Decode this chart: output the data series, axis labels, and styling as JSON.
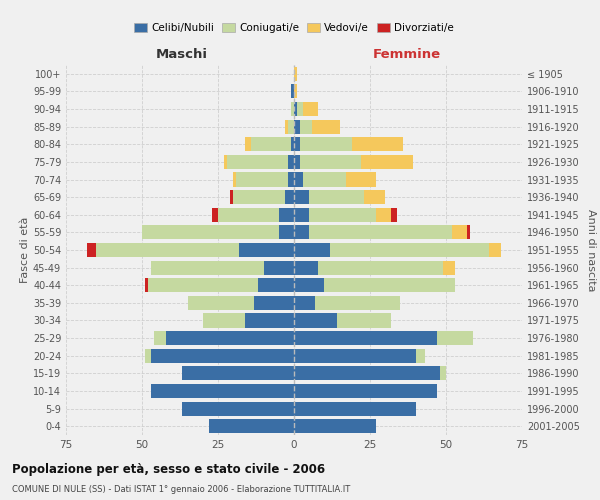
{
  "age_groups": [
    "0-4",
    "5-9",
    "10-14",
    "15-19",
    "20-24",
    "25-29",
    "30-34",
    "35-39",
    "40-44",
    "45-49",
    "50-54",
    "55-59",
    "60-64",
    "65-69",
    "70-74",
    "75-79",
    "80-84",
    "85-89",
    "90-94",
    "95-99",
    "100+"
  ],
  "birth_years": [
    "2001-2005",
    "1996-2000",
    "1991-1995",
    "1986-1990",
    "1981-1985",
    "1976-1980",
    "1971-1975",
    "1966-1970",
    "1961-1965",
    "1956-1960",
    "1951-1955",
    "1946-1950",
    "1941-1945",
    "1936-1940",
    "1931-1935",
    "1926-1930",
    "1921-1925",
    "1916-1920",
    "1911-1915",
    "1906-1910",
    "≤ 1905"
  ],
  "colors": {
    "celibi": "#3a6ea5",
    "coniugati": "#c5d9a0",
    "vedovi": "#f5c85c",
    "divorziati": "#cc2222"
  },
  "maschi": {
    "celibi": [
      28,
      37,
      47,
      37,
      47,
      42,
      16,
      13,
      12,
      10,
      18,
      5,
      5,
      3,
      2,
      2,
      1,
      0,
      0,
      1,
      0
    ],
    "coniugati": [
      0,
      0,
      0,
      0,
      2,
      4,
      14,
      22,
      36,
      37,
      47,
      45,
      20,
      17,
      17,
      20,
      13,
      2,
      1,
      0,
      0
    ],
    "vedovi": [
      0,
      0,
      0,
      0,
      0,
      0,
      0,
      0,
      0,
      0,
      0,
      0,
      0,
      0,
      1,
      1,
      2,
      1,
      0,
      0,
      0
    ],
    "divorziati": [
      0,
      0,
      0,
      0,
      0,
      0,
      0,
      0,
      1,
      0,
      3,
      0,
      2,
      1,
      0,
      0,
      0,
      0,
      0,
      0,
      0
    ]
  },
  "femmine": {
    "celibi": [
      27,
      40,
      47,
      48,
      40,
      47,
      14,
      7,
      10,
      8,
      12,
      5,
      5,
      5,
      3,
      2,
      2,
      2,
      1,
      0,
      0
    ],
    "coniugati": [
      0,
      0,
      0,
      2,
      3,
      12,
      18,
      28,
      43,
      41,
      52,
      47,
      22,
      18,
      14,
      20,
      17,
      4,
      2,
      0,
      0
    ],
    "vedovi": [
      0,
      0,
      0,
      0,
      0,
      0,
      0,
      0,
      0,
      4,
      4,
      5,
      5,
      7,
      10,
      17,
      17,
      9,
      5,
      1,
      1
    ],
    "divorziati": [
      0,
      0,
      0,
      0,
      0,
      0,
      0,
      0,
      0,
      0,
      0,
      1,
      2,
      0,
      0,
      0,
      0,
      0,
      0,
      0,
      0
    ]
  },
  "xlim": 75,
  "title": "Popolazione per età, sesso e stato civile - 2006",
  "subtitle": "COMUNE DI NULE (SS) - Dati ISTAT 1° gennaio 2006 - Elaborazione TUTTITALIA.IT",
  "xlabel_left": "Maschi",
  "xlabel_right": "Femmine",
  "ylabel_left": "Fasce di età",
  "ylabel_right": "Anni di nascita",
  "legend_labels": [
    "Celibi/Nubili",
    "Coniugati/e",
    "Vedovi/e",
    "Divorziati/e"
  ],
  "background_color": "#f0f0f0",
  "grid_color": "#cccccc"
}
